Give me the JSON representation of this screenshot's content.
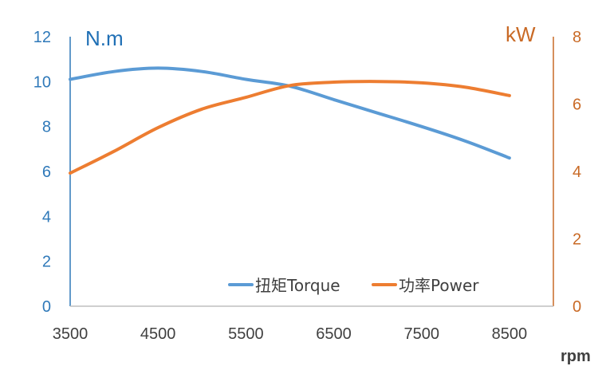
{
  "chart_data": {
    "type": "line",
    "title": "",
    "xlabel": "rpm",
    "x_ticks": [
      "3500",
      "4500",
      "5500",
      "6500",
      "7500",
      "8500"
    ],
    "xlim": [
      3500,
      9000
    ],
    "y_left": {
      "label": "N.m",
      "ylim": [
        0,
        12
      ],
      "ticks": [
        "0",
        "2",
        "4",
        "6",
        "8",
        "10",
        "12"
      ]
    },
    "y_right": {
      "label": "kW",
      "ylim": [
        0,
        8
      ],
      "ticks": [
        "0",
        "2",
        "4",
        "6",
        "8"
      ]
    },
    "grid": false,
    "legend_position": "bottom-right",
    "series": [
      {
        "name": "扭矩Torque",
        "axis": "left",
        "color": "#5b9bd5",
        "x": [
          3500,
          4000,
          4500,
          5000,
          5500,
          6000,
          6500,
          7000,
          7500,
          8000,
          8500
        ],
        "values": [
          10.1,
          10.45,
          10.6,
          10.45,
          10.1,
          9.8,
          9.2,
          8.6,
          8.0,
          7.35,
          6.6
        ]
      },
      {
        "name": "功率Power",
        "axis": "right",
        "color": "#ed7d31",
        "x": [
          3500,
          4000,
          4500,
          5000,
          5500,
          6000,
          6500,
          7000,
          7500,
          8000,
          8500
        ],
        "values": [
          3.95,
          4.6,
          5.3,
          5.85,
          6.2,
          6.55,
          6.65,
          6.67,
          6.63,
          6.5,
          6.25
        ]
      }
    ]
  }
}
